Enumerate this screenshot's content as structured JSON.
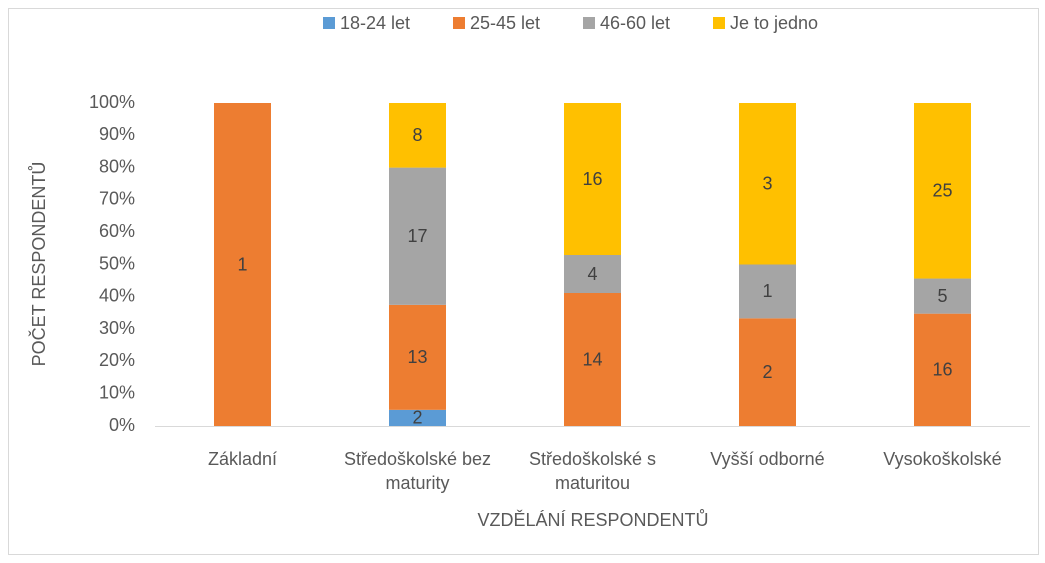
{
  "chart_data": {
    "type": "bar",
    "stacking": "percent",
    "x_label": "VZDĚLÁNÍ RESPONDENTŮ",
    "y_label": "POČET RESPONDENTŮ",
    "categories": [
      "Základní",
      "Středoškolské bez maturity",
      "Středoškolské s maturitou",
      "Vyšší odborné",
      "Vysokoškolské"
    ],
    "series": [
      {
        "name": "18-24 let",
        "color": "#5b9bd5",
        "values": [
          0,
          2,
          0,
          0,
          0
        ]
      },
      {
        "name": "25-45 let",
        "color": "#ed7d31",
        "values": [
          1,
          13,
          14,
          2,
          16
        ]
      },
      {
        "name": "46-60 let",
        "color": "#a5a5a5",
        "values": [
          0,
          17,
          4,
          1,
          5
        ]
      },
      {
        "name": "Je to jedno",
        "color": "#ffc000",
        "values": [
          0,
          8,
          16,
          3,
          25
        ]
      }
    ],
    "ylim": [
      0,
      100
    ],
    "yticks": [
      {
        "value": 0,
        "label": "0%"
      },
      {
        "value": 10,
        "label": "10%"
      },
      {
        "value": 20,
        "label": "20%"
      },
      {
        "value": 30,
        "label": "30%"
      },
      {
        "value": 40,
        "label": "40%"
      },
      {
        "value": 50,
        "label": "50%"
      },
      {
        "value": 60,
        "label": "60%"
      },
      {
        "value": 70,
        "label": "70%"
      },
      {
        "value": 80,
        "label": "80%"
      },
      {
        "value": 90,
        "label": "90%"
      },
      {
        "value": 100,
        "label": "100%"
      }
    ],
    "grid": false,
    "legend": "top"
  }
}
